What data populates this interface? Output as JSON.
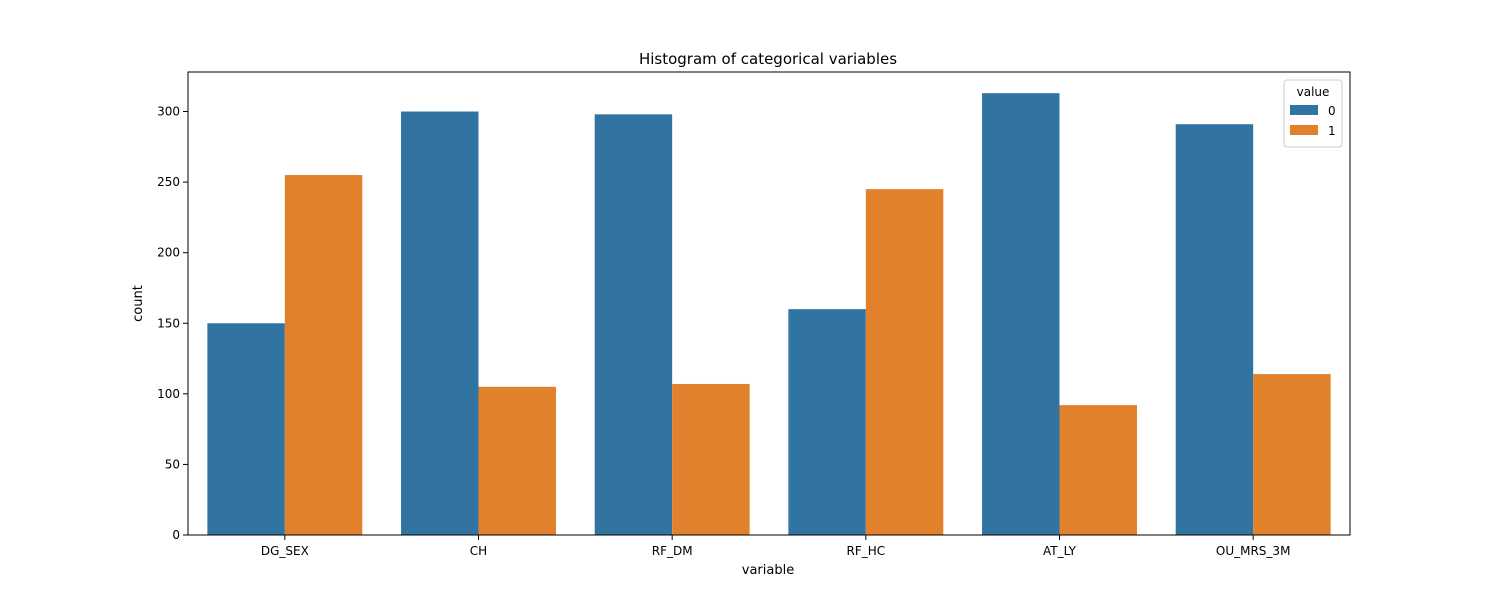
{
  "chart_data": {
    "type": "bar",
    "title": "Histogram of categorical variables",
    "xlabel": "variable",
    "ylabel": "count",
    "categories": [
      "DG_SEX",
      "CH",
      "RF_DM",
      "RF_HC",
      "AT_LY",
      "OU_MRS_3M"
    ],
    "series": [
      {
        "name": "0",
        "color": "#3274a1",
        "values": [
          150,
          300,
          298,
          160,
          313,
          291
        ]
      },
      {
        "name": "1",
        "color": "#e1812c",
        "values": [
          255,
          105,
          107,
          245,
          92,
          114
        ]
      }
    ],
    "ylim": [
      0,
      328
    ],
    "yticks": [
      0,
      50,
      100,
      150,
      200,
      250,
      300
    ],
    "grid": false,
    "legend": {
      "title": "value",
      "placement": "top-right"
    }
  }
}
